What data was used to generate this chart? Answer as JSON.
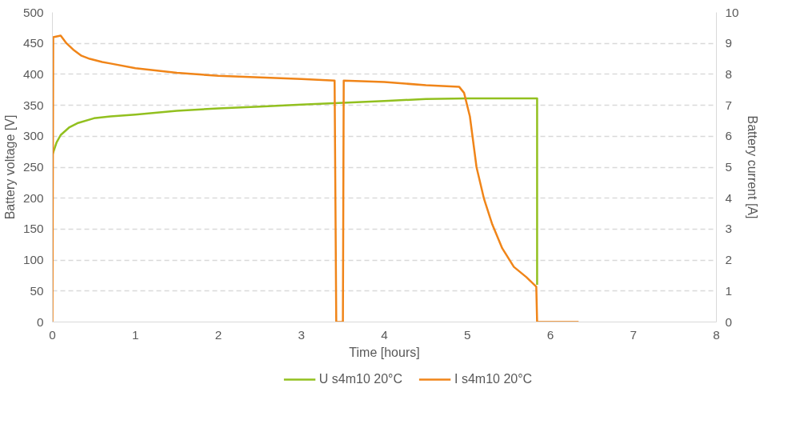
{
  "chart_data": {
    "type": "line",
    "xlabel": "Time [hours]",
    "ylabel": "Battery voltage [V]",
    "y2label": "Battery current [A]",
    "xlim": [
      0,
      8
    ],
    "xticks": [
      0,
      1,
      2,
      3,
      4,
      5,
      6,
      7,
      8
    ],
    "ylim": [
      0,
      500
    ],
    "yticks": [
      0,
      50,
      100,
      150,
      200,
      250,
      300,
      350,
      400,
      450,
      500
    ],
    "y2lim": [
      0,
      10
    ],
    "y2ticks": [
      0,
      1,
      2,
      3,
      4,
      5,
      6,
      7,
      8,
      9,
      10
    ],
    "grid": "y",
    "legend": "bottom",
    "line_style": "solid",
    "marker": "none",
    "series": [
      {
        "name": "U s4m10 20°C",
        "color": "#92c01f",
        "x": [
          0,
          0.05,
          0.1,
          0.2,
          0.3,
          0.5,
          0.7,
          1,
          1.5,
          2,
          2.5,
          3,
          3.5,
          4,
          4.5,
          5,
          5.84,
          5.84
        ],
        "values": [
          270,
          290,
          302,
          314,
          321,
          329,
          332,
          335,
          341,
          345,
          348,
          351,
          354,
          357,
          360,
          361,
          361,
          60
        ]
      },
      {
        "name": "I s4m10 20°C",
        "color": "#f08519",
        "axis": "y2",
        "x": [
          0,
          0.01,
          0.1,
          0.17,
          0.25,
          0.35,
          0.45,
          0.6,
          0.7,
          1,
          1.5,
          2,
          2.5,
          3,
          3.4,
          3.42,
          3.5,
          3.51,
          4,
          4.5,
          4.9,
          4.96,
          5.03,
          5.11,
          5.2,
          5.3,
          5.42,
          5.56,
          5.71,
          5.83,
          5.84,
          6.34
        ],
        "values": [
          0,
          9.2,
          9.25,
          9.0,
          8.8,
          8.6,
          8.5,
          8.4,
          8.35,
          8.2,
          8.05,
          7.95,
          7.9,
          7.85,
          7.8,
          0,
          0,
          7.8,
          7.75,
          7.65,
          7.6,
          7.4,
          6.64,
          5.0,
          3.98,
          3.15,
          2.38,
          1.78,
          1.45,
          1.14,
          0,
          0
        ]
      }
    ]
  }
}
